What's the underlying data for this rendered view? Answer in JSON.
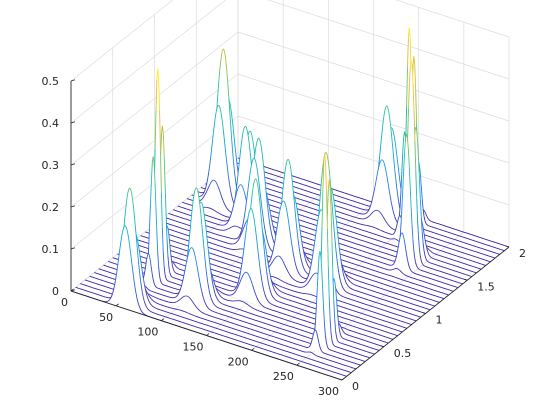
{
  "chart_data": {
    "type": "waterfall",
    "title": "",
    "xlabel": "",
    "ylabel": "",
    "zlabel": "",
    "x_ticks": [
      "0",
      "50",
      "100",
      "150",
      "200",
      "250",
      "300"
    ],
    "y_ticks": [
      "0",
      "0.5",
      "1",
      "1.5",
      "2"
    ],
    "z_ticks": [
      "0",
      "0.1",
      "0.2",
      "0.3",
      "0.4",
      "0.5"
    ],
    "xlim": [
      0,
      300
    ],
    "ylim": [
      0,
      2
    ],
    "zlim": [
      0,
      0.5
    ],
    "grid": true,
    "colormap": "parula",
    "colormap_stops": [
      "#3e26a8",
      "#2c73e9",
      "#0fafd6",
      "#2cc79a",
      "#a8c33c",
      "#f8ba3d",
      "#f9fb15"
    ],
    "series": {
      "y_count": 37,
      "y_start": 0,
      "y_step": 0.05556,
      "x_points": 301,
      "peaks": [
        {
          "x_center": 60,
          "y_center": 0.05,
          "amplitude": 0.28,
          "width": 7
        },
        {
          "x_center": 108,
          "y_center": 0.35,
          "amplitude": 0.28,
          "width": 7
        },
        {
          "x_center": 148,
          "y_center": 0.6,
          "amplitude": 0.28,
          "width": 7
        },
        {
          "x_center": 195,
          "y_center": 0.95,
          "amplitude": 0.32,
          "width": 7
        },
        {
          "x_center": 55,
          "y_center": 0.45,
          "amplitude": 0.5,
          "width": 3
        },
        {
          "x_center": 250,
          "y_center": 0.35,
          "amplitude": 0.47,
          "width": 3
        },
        {
          "x_center": 238,
          "y_center": 1.5,
          "amplitude": 0.48,
          "width": 4
        },
        {
          "x_center": 30,
          "y_center": 1.5,
          "amplitude": 0.36,
          "width": 7
        },
        {
          "x_center": 75,
          "y_center": 1.3,
          "amplitude": 0.26,
          "width": 7
        },
        {
          "x_center": 100,
          "y_center": 1.15,
          "amplitude": 0.26,
          "width": 7
        },
        {
          "x_center": 148,
          "y_center": 1.0,
          "amplitude": 0.26,
          "width": 7
        },
        {
          "x_center": 205,
          "y_center": 1.85,
          "amplitude": 0.5,
          "width": 3
        },
        {
          "x_center": 175,
          "y_center": 1.9,
          "amplitude": 0.27,
          "width": 7
        }
      ]
    }
  }
}
